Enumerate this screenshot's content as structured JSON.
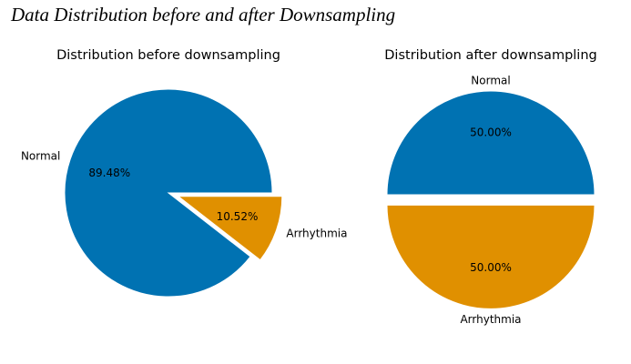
{
  "figure": {
    "title": "Data Distribution before and after Downsampling"
  },
  "colors": {
    "normal": "#0072b2",
    "arrhythmia": "#e09000"
  },
  "chart_data": [
    {
      "type": "pie",
      "title": "Distribution before downsampling",
      "labels": [
        "Normal",
        "Arrhythmia"
      ],
      "values": [
        89.48,
        10.52
      ],
      "pct_labels": [
        "89.48%",
        "10.52%"
      ],
      "explode": [
        0,
        0.1
      ]
    },
    {
      "type": "pie",
      "title": "Distribution after downsampling",
      "labels": [
        "Normal",
        "Arrhythmia"
      ],
      "values": [
        50.0,
        50.0
      ],
      "pct_labels": [
        "50.00%",
        "50.00%"
      ],
      "explode": [
        0,
        0.1
      ]
    }
  ]
}
